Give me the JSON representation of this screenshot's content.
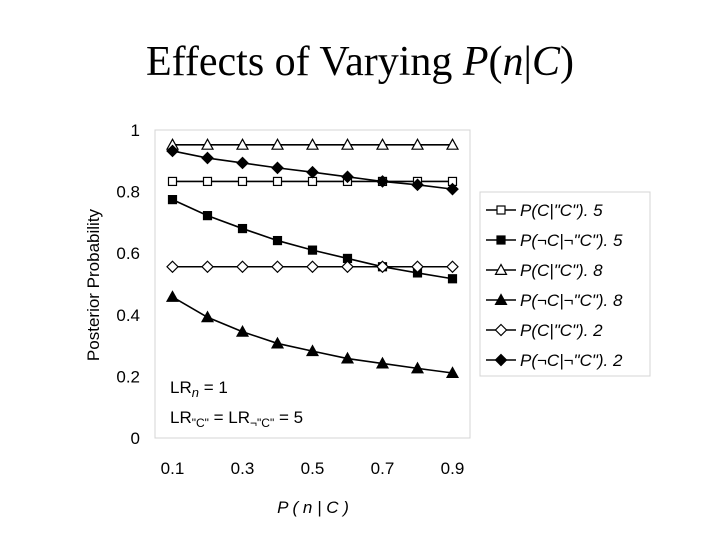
{
  "title": {
    "prefix": "Effects of Varying ",
    "p": "P",
    "open": "(",
    "n": "n",
    "bar": "|",
    "c": "C",
    "close": ")"
  },
  "chart_data": {
    "type": "line",
    "xlabel": "P ( n | C )",
    "ylabel": "Posterior Probability",
    "xlim": [
      0.05,
      0.95
    ],
    "ylim": [
      0,
      1
    ],
    "x_ticks": [
      "0.1",
      "0.3",
      "0.5",
      "0.7",
      "0.9"
    ],
    "y_ticks": [
      "0",
      "0.2",
      "0.4",
      "0.6",
      "0.8",
      "1"
    ],
    "x": [
      0.1,
      0.2,
      0.3,
      0.4,
      0.5,
      0.6,
      0.7,
      0.8,
      0.9
    ],
    "series": [
      {
        "name": "P(C|\"C\"). 5",
        "marker": "square-open",
        "values": [
          0.833,
          0.833,
          0.833,
          0.833,
          0.833,
          0.833,
          0.833,
          0.833,
          0.833
        ]
      },
      {
        "name": "P(¬C|¬\"C\"). 5",
        "marker": "square-filled",
        "values": [
          0.774,
          0.722,
          0.68,
          0.641,
          0.61,
          0.583,
          0.556,
          0.536,
          0.517
        ]
      },
      {
        "name": "P(C|\"C\"). 8",
        "marker": "triangle-open",
        "values": [
          0.952,
          0.952,
          0.952,
          0.952,
          0.952,
          0.952,
          0.952,
          0.952,
          0.952
        ]
      },
      {
        "name": "P(¬C|¬\"C\"). 8",
        "marker": "triangle-filled",
        "values": [
          0.458,
          0.392,
          0.345,
          0.307,
          0.282,
          0.258,
          0.242,
          0.226,
          0.211
        ]
      },
      {
        "name": "P(C|\"C\"). 2",
        "marker": "diamond-open",
        "values": [
          0.556,
          0.556,
          0.556,
          0.556,
          0.556,
          0.556,
          0.556,
          0.556,
          0.556
        ]
      },
      {
        "name": "P(¬C|¬\"C\"). 2",
        "marker": "diamond-filled",
        "values": [
          0.932,
          0.909,
          0.893,
          0.877,
          0.863,
          0.848,
          0.833,
          0.822,
          0.808
        ]
      }
    ],
    "annotations": {
      "line1_prefix": "LR",
      "line1_sub": "n",
      "line1_suffix": " = 1",
      "line2_prefix": "LR",
      "line2_sub1": "\"C\"",
      "line2_mid": " = LR",
      "line2_sub2": "¬\"C\"",
      "line2_suffix": " = 5"
    },
    "legend_position": "right"
  }
}
